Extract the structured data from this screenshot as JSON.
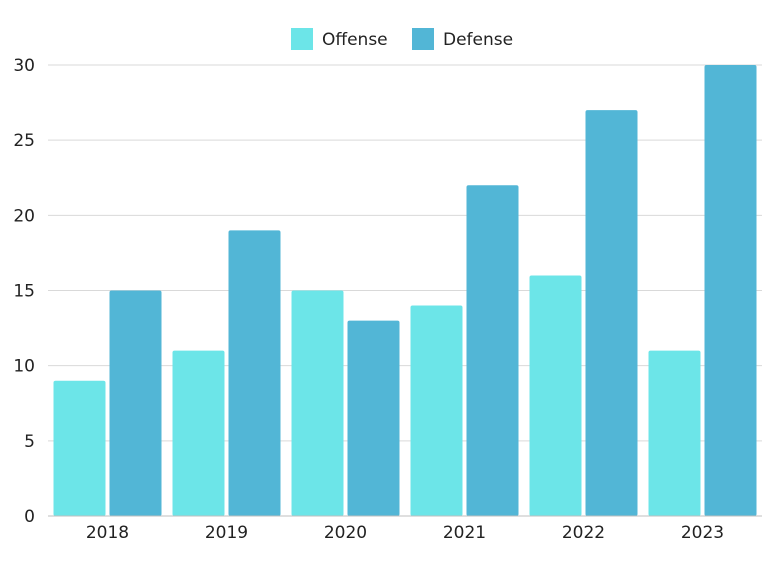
{
  "chart_data": {
    "type": "bar",
    "categories": [
      "2018",
      "2019",
      "2020",
      "2021",
      "2022",
      "2023"
    ],
    "series": [
      {
        "name": "Offense",
        "values": [
          9,
          11,
          15,
          14,
          16,
          11
        ],
        "color": "#6ce5e8"
      },
      {
        "name": "Defense",
        "values": [
          15,
          19,
          13,
          22,
          27,
          30
        ],
        "color": "#52b6d6"
      }
    ],
    "title": "",
    "xlabel": "",
    "ylabel": "",
    "ylim": [
      0,
      30
    ],
    "yticks": [
      0,
      5,
      10,
      15,
      20,
      25,
      30
    ],
    "grid": true,
    "legend_position": "top-center",
    "colors": {
      "grid": "#d9d9d9",
      "axis": "#bfbfbf",
      "text": "#222222"
    }
  }
}
